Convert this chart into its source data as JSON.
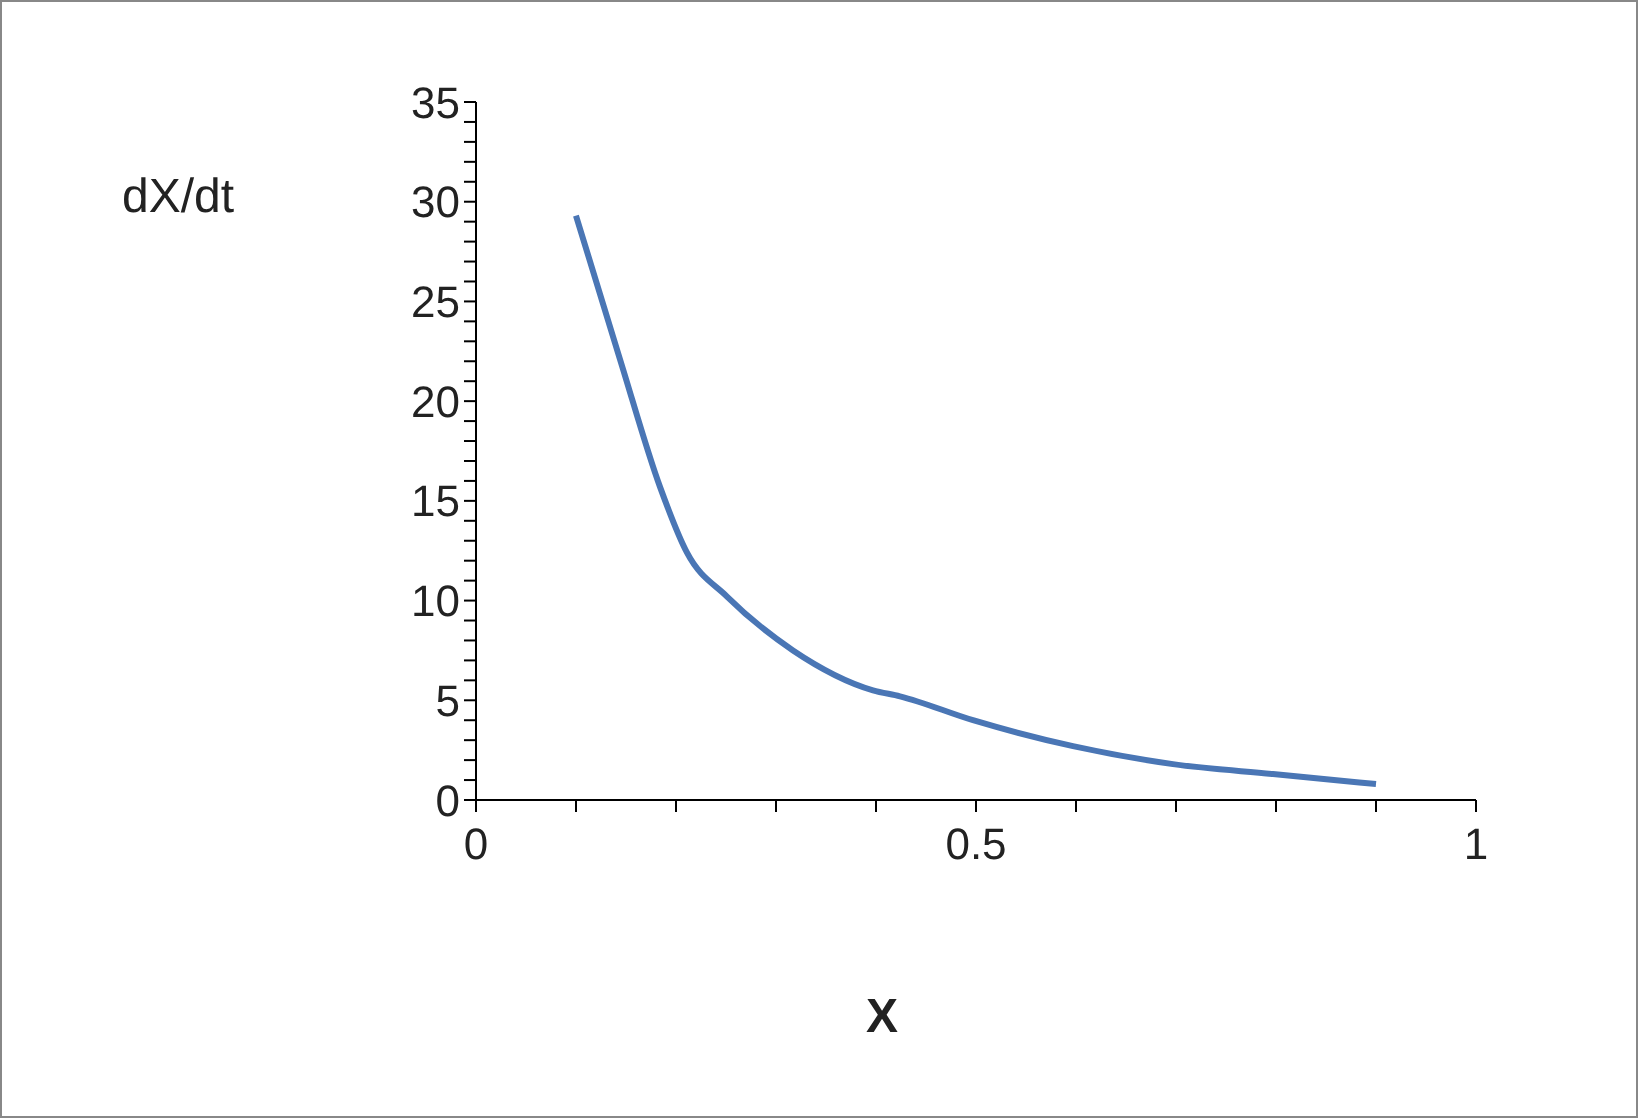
{
  "chart_data": {
    "type": "line",
    "xlabel": "X",
    "ylabel": "dX/dt",
    "x": [
      0.1,
      0.144,
      0.184,
      0.211,
      0.251,
      0.317,
      0.397,
      0.424,
      0.497,
      0.597,
      0.697,
      0.797,
      0.9
    ],
    "series": [
      {
        "color": "#4a76b5",
        "values": [
          29.3,
          22.1,
          15.7,
          12.4,
          10.2,
          7.5,
          5.5,
          5.2,
          4.0,
          2.7,
          1.8,
          1.3,
          0.8
        ]
      }
    ],
    "xlim": [
      0,
      1
    ],
    "xticks": [
      0,
      {
        "value": 0.1,
        "label": null
      },
      {
        "value": 0.2,
        "label": null
      },
      {
        "value": 0.3,
        "label": null
      },
      {
        "value": 0.4,
        "label": null
      },
      0.5,
      {
        "value": 0.6,
        "label": null
      },
      {
        "value": 0.7,
        "label": null
      },
      {
        "value": 0.8,
        "label": null
      },
      {
        "value": 0.9,
        "label": null
      },
      1
    ],
    "ylim": [
      0,
      35
    ],
    "yticks": [
      0,
      {
        "value": 1,
        "label": null
      },
      {
        "value": 2,
        "label": null
      },
      {
        "value": 3,
        "label": null
      },
      {
        "value": 4,
        "label": null
      },
      5,
      {
        "value": 6,
        "label": null
      },
      {
        "value": 7,
        "label": null
      },
      {
        "value": 8,
        "label": null
      },
      {
        "value": 9,
        "label": null
      },
      10,
      {
        "value": 11,
        "label": null
      },
      {
        "value": 12,
        "label": null
      },
      {
        "value": 13,
        "label": null
      },
      {
        "value": 14,
        "label": null
      },
      15,
      {
        "value": 16,
        "label": null
      },
      {
        "value": 17,
        "label": null
      },
      {
        "value": 18,
        "label": null
      },
      {
        "value": 19,
        "label": null
      },
      20,
      {
        "value": 21,
        "label": null
      },
      {
        "value": 22,
        "label": null
      },
      {
        "value": 23,
        "label": null
      },
      {
        "value": 24,
        "label": null
      },
      25,
      {
        "value": 26,
        "label": null
      },
      {
        "value": 27,
        "label": null
      },
      {
        "value": 28,
        "label": null
      },
      {
        "value": 29,
        "label": null
      },
      30,
      {
        "value": 31,
        "label": null
      },
      {
        "value": 32,
        "label": null
      },
      {
        "value": 33,
        "label": null
      },
      {
        "value": 34,
        "label": null
      },
      35
    ],
    "grid": false,
    "legend": false,
    "marker": "none",
    "line_style": "solid"
  }
}
